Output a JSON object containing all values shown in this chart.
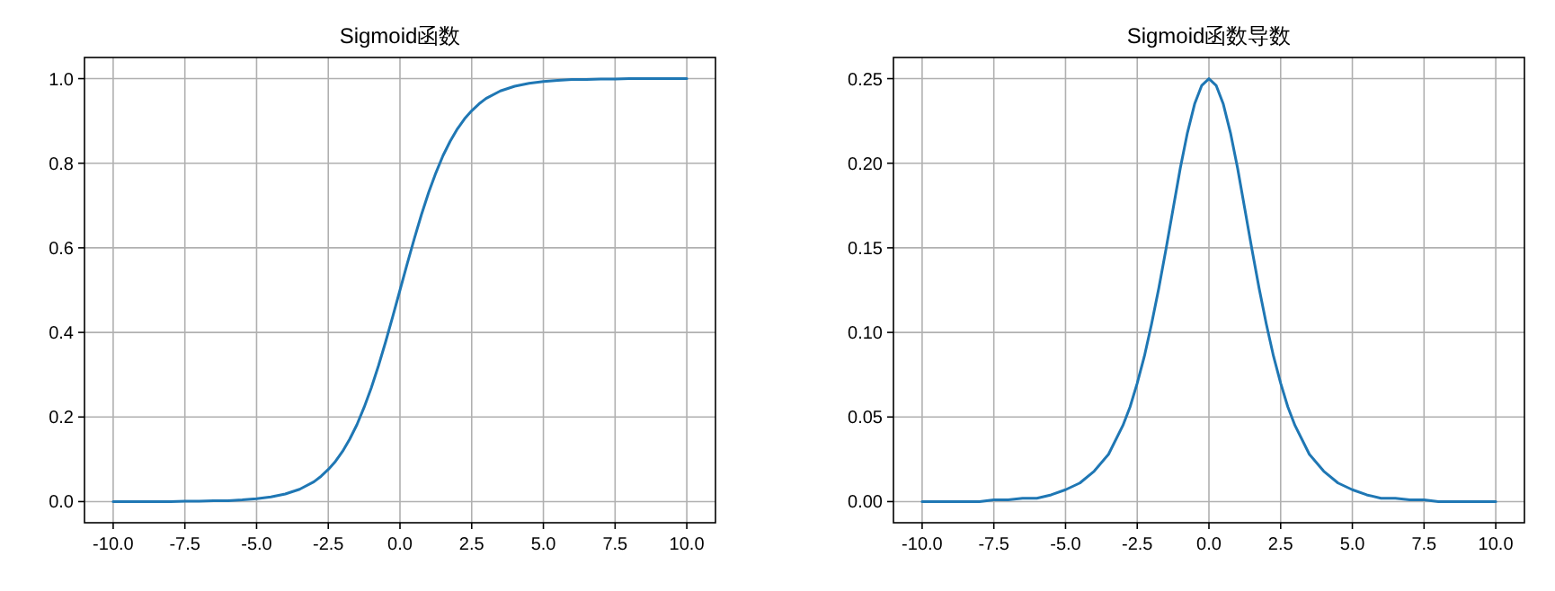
{
  "chart_data": [
    {
      "type": "line",
      "title": "Sigmoid函数",
      "grid": true,
      "xlim": [
        -11,
        11
      ],
      "ylim": [
        -0.05,
        1.05
      ],
      "xticks": [
        {
          "value": -10,
          "label": "-10.0"
        },
        {
          "value": -7.5,
          "label": "-7.5"
        },
        {
          "value": -5,
          "label": "-5.0"
        },
        {
          "value": -2.5,
          "label": "-2.5"
        },
        {
          "value": 0,
          "label": "0.0"
        },
        {
          "value": 2.5,
          "label": "2.5"
        },
        {
          "value": 5,
          "label": "5.0"
        },
        {
          "value": 7.5,
          "label": "7.5"
        },
        {
          "value": 10,
          "label": "10.0"
        }
      ],
      "yticks": [
        {
          "value": 0,
          "label": "0.0"
        },
        {
          "value": 0.2,
          "label": "0.2"
        },
        {
          "value": 0.4,
          "label": "0.4"
        },
        {
          "value": 0.6,
          "label": "0.6"
        },
        {
          "value": 0.8,
          "label": "0.8"
        },
        {
          "value": 1,
          "label": "1.0"
        }
      ],
      "x": [
        -10,
        -9.5,
        -9,
        -8.5,
        -8,
        -7.5,
        -7,
        -6.5,
        -6,
        -5.5,
        -5,
        -4.5,
        -4,
        -3.5,
        -3,
        -2.75,
        -2.5,
        -2.25,
        -2,
        -1.75,
        -1.5,
        -1.25,
        -1,
        -0.75,
        -0.5,
        -0.25,
        0,
        0.25,
        0.5,
        0.75,
        1,
        1.25,
        1.5,
        1.75,
        2,
        2.25,
        2.5,
        2.75,
        3,
        3.5,
        4,
        4.5,
        5,
        5.5,
        6,
        6.5,
        7,
        7.5,
        8,
        8.5,
        9,
        9.5,
        10
      ],
      "series": [
        {
          "color": "#1f77b4",
          "values": [
            0,
            0,
            0,
            0,
            0,
            0.001,
            0.001,
            0.002,
            0.002,
            0.004,
            0.007,
            0.011,
            0.018,
            0.029,
            0.047,
            0.06,
            0.076,
            0.095,
            0.119,
            0.148,
            0.182,
            0.223,
            0.269,
            0.321,
            0.378,
            0.438,
            0.5,
            0.562,
            0.622,
            0.679,
            0.731,
            0.777,
            0.818,
            0.852,
            0.881,
            0.905,
            0.924,
            0.94,
            0.953,
            0.971,
            0.982,
            0.989,
            0.993,
            0.996,
            0.998,
            0.998,
            0.999,
            0.999,
            1,
            1,
            1,
            1,
            1
          ]
        }
      ]
    },
    {
      "type": "line",
      "title": "Sigmoid函数导数",
      "grid": true,
      "xlim": [
        -11,
        11
      ],
      "ylim": [
        -0.0125,
        0.2625
      ],
      "xticks": [
        {
          "value": -10,
          "label": "-10.0"
        },
        {
          "value": -7.5,
          "label": "-7.5"
        },
        {
          "value": -5,
          "label": "-5.0"
        },
        {
          "value": -2.5,
          "label": "-2.5"
        },
        {
          "value": 0,
          "label": "0.0"
        },
        {
          "value": 2.5,
          "label": "2.5"
        },
        {
          "value": 5,
          "label": "5.0"
        },
        {
          "value": 7.5,
          "label": "7.5"
        },
        {
          "value": 10,
          "label": "10.0"
        }
      ],
      "yticks": [
        {
          "value": 0,
          "label": "0.00"
        },
        {
          "value": 0.05,
          "label": "0.05"
        },
        {
          "value": 0.1,
          "label": "0.10"
        },
        {
          "value": 0.15,
          "label": "0.15"
        },
        {
          "value": 0.2,
          "label": "0.20"
        },
        {
          "value": 0.25,
          "label": "0.25"
        }
      ],
      "x": [
        -10,
        -9.5,
        -9,
        -8.5,
        -8,
        -7.5,
        -7,
        -6.5,
        -6,
        -5.5,
        -5,
        -4.5,
        -4,
        -3.5,
        -3,
        -2.75,
        -2.5,
        -2.25,
        -2,
        -1.75,
        -1.5,
        -1.25,
        -1,
        -0.75,
        -0.5,
        -0.25,
        0,
        0.25,
        0.5,
        0.75,
        1,
        1.25,
        1.5,
        1.75,
        2,
        2.25,
        2.5,
        2.75,
        3,
        3.5,
        4,
        4.5,
        5,
        5.5,
        6,
        6.5,
        7,
        7.5,
        8,
        8.5,
        9,
        9.5,
        10
      ],
      "series": [
        {
          "color": "#1f77b4",
          "values": [
            0,
            0,
            0,
            0,
            0,
            0.001,
            0.001,
            0.002,
            0.002,
            0.004,
            0.007,
            0.011,
            0.018,
            0.028,
            0.045,
            0.056,
            0.07,
            0.086,
            0.105,
            0.126,
            0.149,
            0.173,
            0.197,
            0.218,
            0.235,
            0.246,
            0.25,
            0.246,
            0.235,
            0.218,
            0.197,
            0.173,
            0.149,
            0.126,
            0.105,
            0.086,
            0.07,
            0.056,
            0.045,
            0.028,
            0.018,
            0.011,
            0.007,
            0.004,
            0.002,
            0.002,
            0.001,
            0.001,
            0,
            0,
            0,
            0,
            0
          ]
        }
      ]
    }
  ]
}
